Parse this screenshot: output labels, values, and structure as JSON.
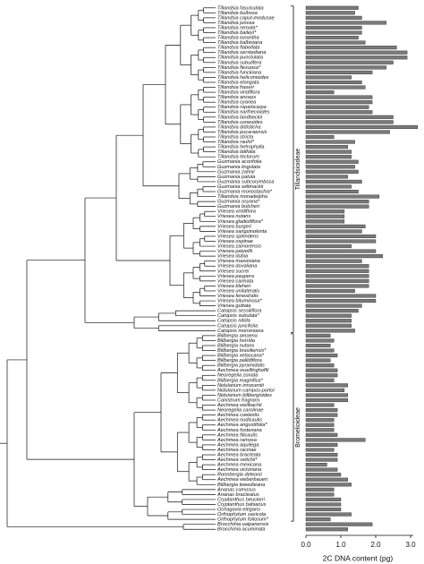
{
  "chart_data": {
    "type": "bar",
    "orientation": "horizontal",
    "categories": [
      "Tillandsia fasciculata",
      "Tillandsia bulbosa",
      "Tillandsia caput-medusae",
      "Tillandsia juncea",
      "Tillandsia remota*",
      "Tillandsia baileyi*",
      "Tillandsia ionantha",
      "Tillandsia balbisiana",
      "Tillandsia flabellata",
      "Tillandsia oerstediana",
      "Tillandsia punctulata",
      "Tillandsia subulifera",
      "Tillandsia flexuosa*",
      "Tillandsia funckiana",
      "Tillandsia heliconioides",
      "Tillandsia elongata",
      "Tillandsia fraseri",
      "Tillandsia viridiflora",
      "Tillandsia anceps",
      "Tillandsia cyanea",
      "Tillandsia ropalocarpa",
      "Tillandsia narthecioides",
      "Tillandsia landbeckii",
      "Tillandsia usneoides",
      "Tillandsia didisticha",
      "Tillandsia pucaraensis",
      "Tillandsia stricta",
      "Tillandsia rauhii*",
      "Tillandsia hetrophylla",
      "Tillandsia latifolia",
      "Tillandsia tectorum",
      "Guzmania acorifolia",
      "Guzmania lingulata",
      "Guzmania zahnii",
      "Guzmania patula",
      "Guzmania subcorymbosa",
      "Guzmania wittmackii",
      "Guzmania monostachia*",
      "Tillandsia monadelpha",
      "Guzmania osyana*",
      "Guzmania butcheri",
      "Vriesea viridiflora",
      "Vriesea nutans",
      "Vriesea gladioliflora*",
      "Vriesea burgeri",
      "Vriesea sanguinolenta",
      "Vriesea splendens",
      "Vriesea ospinae",
      "Vriesea zamorensis",
      "Vriesea patzellii",
      "Vriesea dubia",
      "Vriesea maxoniana",
      "Vriesea duvaliana",
      "Vriesea sucrei",
      "Vriesea paupera",
      "Vriesea carinata",
      "Vriesea bleheri",
      "Vriesea unilateralis",
      "Vriesea fenestralis",
      "Vriesea bituminosa*",
      "Vriesea guttata",
      "Catopsis sessiliflora",
      "Catopsis subulata*",
      "Catopsis nitida",
      "Catopsis juncifolia",
      "Catopsis morreniana",
      "Billbergia amoena",
      "Billbergia horrida",
      "Billbergia nutans",
      "Billbergia brasiliensis*",
      "Billbergia velascana*",
      "Billbergia pallidiflora",
      "Billbergia pyramidalis",
      "Aechmea wuelfinghoffii",
      "Neoregelia zonata",
      "Billbergia magnifica*",
      "Nidularium innocentii",
      "Nidularium campos-portoi",
      "Nidularium billbergioides",
      "Canistrum fragrans",
      "Aechmea weilbachii",
      "Neoregelia carolinae",
      "Aechmea coelestis",
      "Aechmea nudicaulis",
      "Aechmea angustifolia*",
      "Aechmea fosteriana",
      "Aechmea filicaulis",
      "Aechmea ramosa",
      "Aechmea aquilega",
      "Aechmea racinae",
      "Aechmea bracteata",
      "Aechmea veitchii*",
      "Aechmea mexicana",
      "Aechmea victoriana",
      "Ronnbergia deleonii",
      "Aechmea weberbaueri",
      "Billbergia tweedieana",
      "Ananas comosus",
      "Ananas bracteatus",
      "Cryptanthus beuckeri",
      "Cryptanthus bahianus",
      "Ochagavia elegans",
      "Orthophytum saxicola",
      "Orthophytum foliosum*",
      "Brocchinia uaipanensis",
      "Brocchinia acuminata"
    ],
    "values": [
      1.5,
      1.4,
      1.6,
      2.3,
      1.6,
      1.6,
      1.5,
      1.7,
      2.6,
      2.9,
      2.9,
      2.5,
      2.3,
      1.9,
      1.3,
      1.6,
      1.7,
      0.8,
      1.9,
      1.9,
      1.8,
      1.9,
      2.5,
      2.5,
      3.2,
      2.4,
      0.8,
      1.4,
      1.2,
      1.3,
      1.3,
      1.5,
      1.4,
      1.5,
      1.2,
      1.6,
      1.3,
      1.5,
      2.1,
      1.8,
      1.8,
      1.1,
      1.1,
      1.1,
      1.7,
      1.6,
      2.0,
      2.0,
      1.3,
      2.0,
      2.2,
      1.6,
      1.8,
      1.8,
      1.8,
      1.8,
      1.8,
      1.4,
      2.0,
      2.0,
      1.6,
      1.5,
      1.3,
      1.3,
      1.3,
      1.4,
      0.7,
      0.8,
      0.7,
      0.8,
      0.9,
      0.7,
      0.8,
      0.9,
      0.9,
      0.8,
      1.2,
      1.1,
      1.2,
      1.2,
      0.8,
      0.9,
      0.9,
      0.8,
      0.8,
      0.8,
      0.9,
      1.7,
      0.9,
      0.8,
      0.9,
      0.9,
      0.6,
      0.9,
      1.0,
      1.2,
      1.3,
      0.8,
      0.8,
      1.0,
      1.0,
      1.0,
      1.3,
      0.7,
      1.9,
      1.2
    ],
    "color": "#7a7a7a",
    "xlim": [
      0,
      3.0
    ],
    "xticks": [
      {
        "value": 0,
        "label": "0.0"
      },
      {
        "value": 1,
        "label": "1.0"
      },
      {
        "value": 2,
        "label": "2.0"
      },
      {
        "value": 3,
        "label": "3.0"
      }
    ],
    "xlabel": "2C DNA content (pg)",
    "groups": [
      "Tillandsioideae",
      "Bromelioideae"
    ]
  }
}
